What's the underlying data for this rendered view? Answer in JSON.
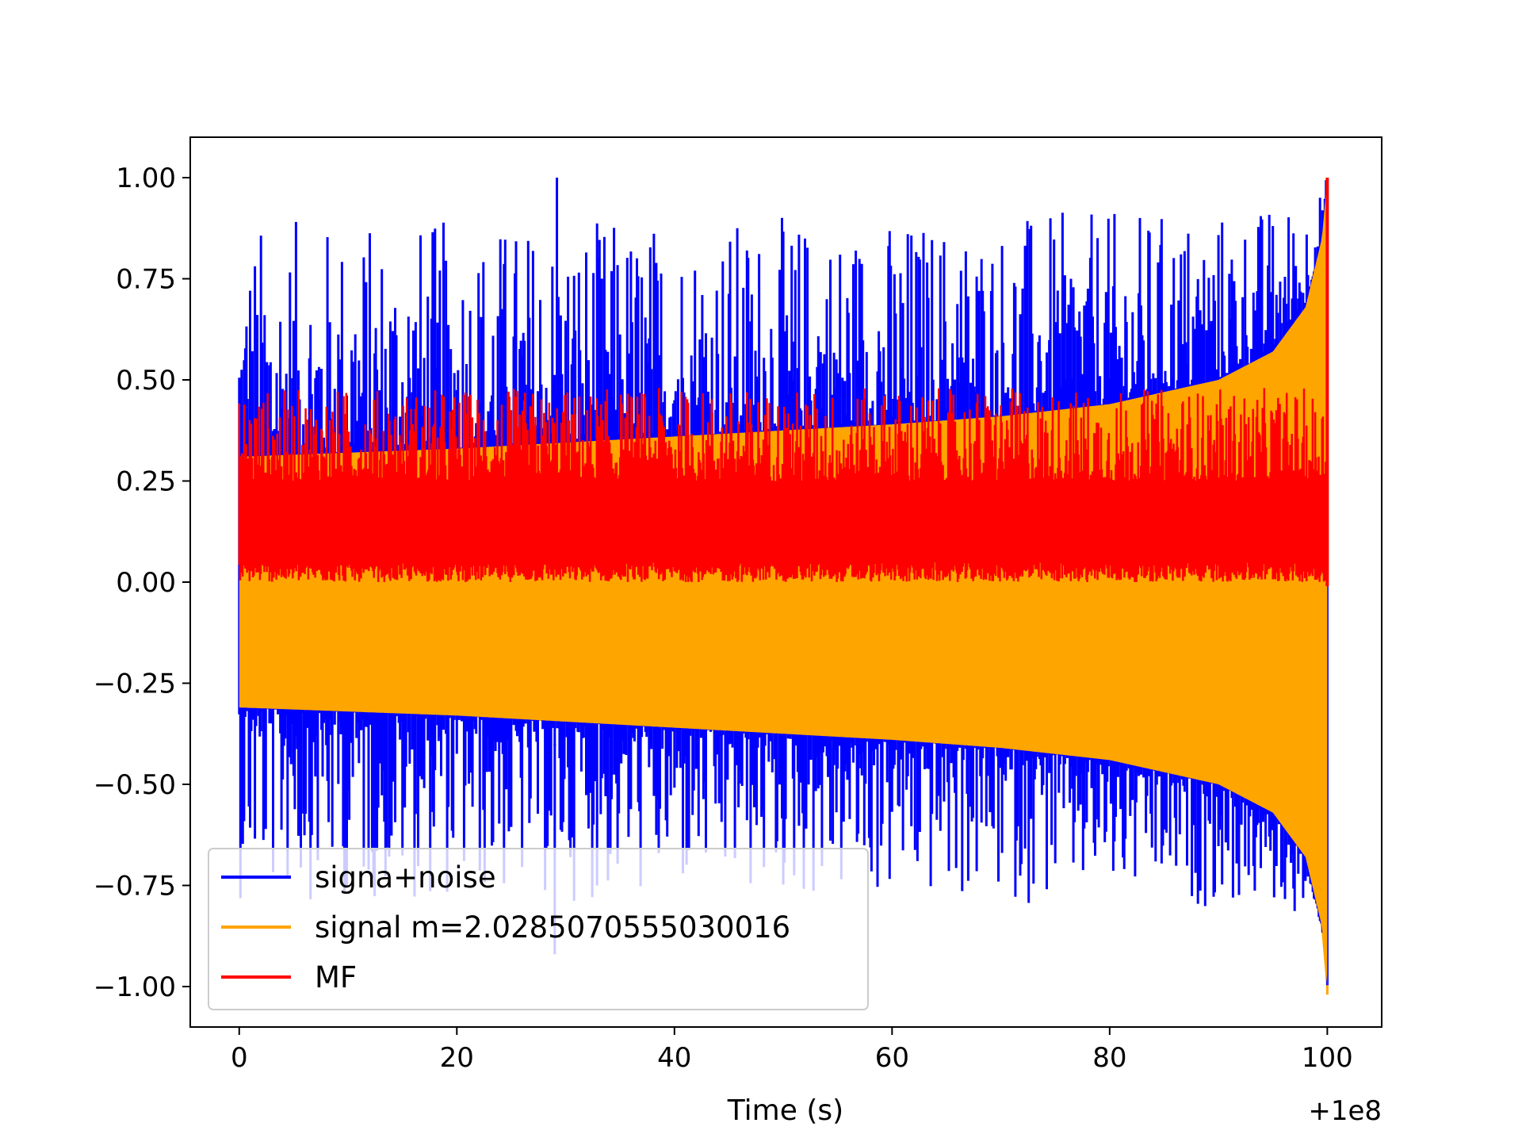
{
  "chart_data": {
    "type": "line",
    "title": "",
    "xlabel": "Time (s)",
    "ylabel": "",
    "x_offset_label": "+1e8",
    "xlim": [
      -4.5,
      105
    ],
    "ylim": [
      -1.1,
      1.1
    ],
    "x_ticks": [
      0,
      20,
      40,
      60,
      80,
      100
    ],
    "x_tick_labels": [
      "0",
      "20",
      "40",
      "60",
      "80",
      "100"
    ],
    "y_ticks": [
      1.0,
      0.75,
      0.5,
      0.25,
      0.0,
      -0.25,
      -0.5,
      -0.75,
      -1.0
    ],
    "y_tick_labels": [
      "1.00",
      "0.75",
      "0.50",
      "0.25",
      "0.00",
      "−0.25",
      "−0.50",
      "−0.75",
      "−1.00"
    ],
    "grid": false,
    "legend_position": "lower-left",
    "x_range": [
      0,
      100
    ],
    "series": [
      {
        "name": "signa+noise",
        "color": "#0000ff",
        "lower_range": [
          -0.84,
          -0.3
        ],
        "upper_range": [
          0.3,
          1.0
        ],
        "peak_max": {
          "x": 29.2,
          "y": 1.0
        },
        "peak_min": {
          "x": 29.0,
          "y": -0.92
        }
      },
      {
        "name": "signal m=2.0285070555030016",
        "color": "#ffa500",
        "envelope": {
          "x": [
            0,
            20,
            40,
            60,
            70,
            80,
            90,
            95,
            98,
            99.5,
            100
          ],
          "amplitude": [
            0.31,
            0.33,
            0.36,
            0.39,
            0.41,
            0.44,
            0.5,
            0.57,
            0.68,
            0.85,
            1.0
          ]
        },
        "final_min": {
          "x": 100,
          "y": -1.02
        },
        "final_max": {
          "x": 100,
          "y": 1.0
        }
      },
      {
        "name": "MF",
        "color": "#ff0000",
        "lower_range": [
          0.0,
          0.05
        ],
        "upper_range": [
          0.25,
          0.48
        ],
        "peak_max": {
          "x": 100,
          "y": 1.0
        },
        "peak_min": {
          "x": 100,
          "y": -0.01
        }
      }
    ]
  }
}
